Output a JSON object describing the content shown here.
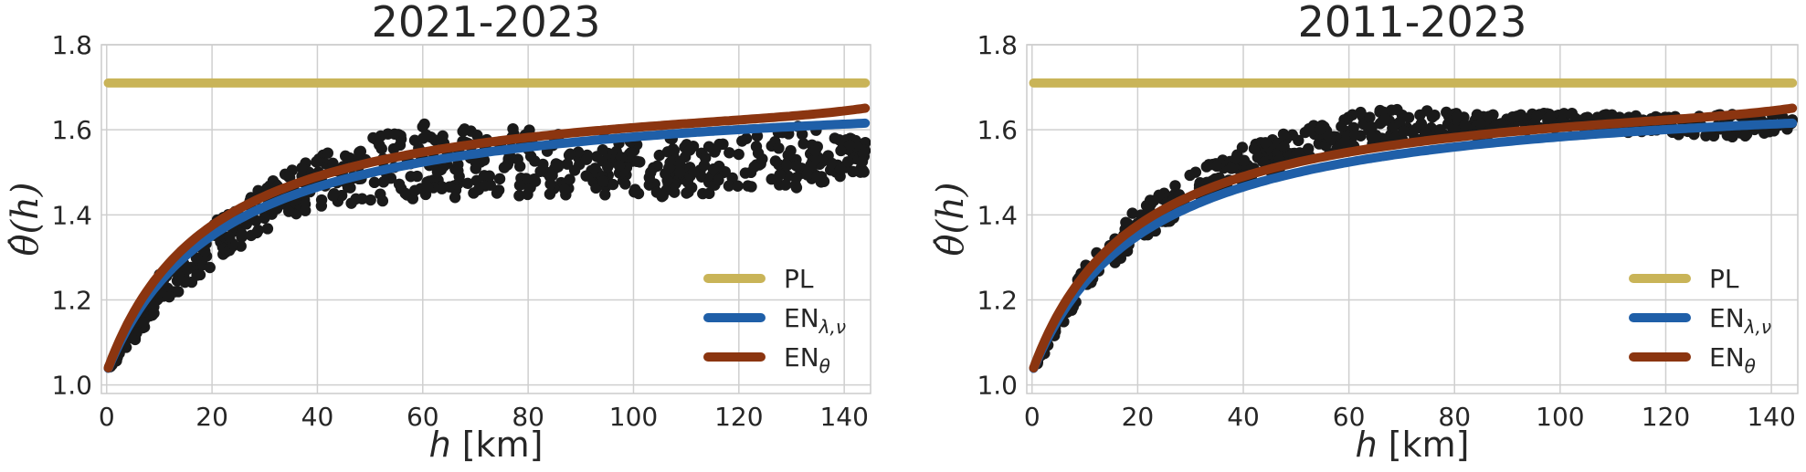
{
  "chart_data": [
    {
      "type": "scatter",
      "title": "2021-2023",
      "xlabel_prefix": "h",
      "xlabel_suffix": " [km]",
      "ylabel": "θ̂(h)",
      "xlim": [
        -1,
        145
      ],
      "ylim": [
        0.98,
        1.8
      ],
      "xticks": [
        0,
        20,
        40,
        60,
        80,
        100,
        120,
        140
      ],
      "yticks": [
        1.0,
        1.2,
        1.4,
        1.6,
        1.8
      ],
      "ytick_labels": [
        "1.0",
        "1.2",
        "1.4",
        "1.6",
        "1.8"
      ],
      "grid": true,
      "legend_position": "bottom-right",
      "scatter": {
        "color": "#1a1a1a",
        "x_range": [
          0.5,
          144
        ],
        "count": 640,
        "band": [
          [
            0,
            1.03,
            1.03
          ],
          [
            5,
            1.1,
            1.15
          ],
          [
            10,
            1.18,
            1.26
          ],
          [
            20,
            1.28,
            1.38
          ],
          [
            30,
            1.36,
            1.47
          ],
          [
            40,
            1.42,
            1.54
          ],
          [
            50,
            1.43,
            1.58
          ],
          [
            60,
            1.44,
            1.62
          ],
          [
            70,
            1.44,
            1.62
          ],
          [
            80,
            1.44,
            1.6
          ],
          [
            100,
            1.44,
            1.58
          ],
          [
            120,
            1.45,
            1.58
          ],
          [
            130,
            1.46,
            1.62
          ],
          [
            144,
            1.5,
            1.57
          ]
        ]
      },
      "series": [
        {
          "name": "PL",
          "name_sub": "",
          "color": "#c9b458",
          "kind": "constant",
          "value": 1.71
        },
        {
          "name": "EN",
          "name_sub": "λ,ν",
          "color": "#1f5fa8",
          "kind": "saturating",
          "start": 1.03,
          "end": 1.705,
          "scale": 22
        },
        {
          "name": "EN",
          "name_sub": "θ",
          "color": "#8b3510",
          "kind": "saturating",
          "start": 1.03,
          "end": 1.72,
          "scale": 20,
          "uptick": 0.015
        }
      ]
    },
    {
      "type": "scatter",
      "title": "2011-2023",
      "xlabel_prefix": "h",
      "xlabel_suffix": " [km]",
      "ylabel": "θ̂(h)",
      "xlim": [
        -1,
        145
      ],
      "ylim": [
        0.98,
        1.8
      ],
      "xticks": [
        0,
        20,
        40,
        60,
        80,
        100,
        120,
        140
      ],
      "yticks": [
        1.0,
        1.2,
        1.4,
        1.6,
        1.8
      ],
      "ytick_labels": [
        "1.0",
        "1.2",
        "1.4",
        "1.6",
        "1.8"
      ],
      "grid": true,
      "legend_position": "bottom-right",
      "scatter": {
        "color": "#1a1a1a",
        "x_range": [
          0.5,
          144
        ],
        "count": 560,
        "band": [
          [
            0,
            1.03,
            1.03
          ],
          [
            5,
            1.12,
            1.16
          ],
          [
            10,
            1.22,
            1.28
          ],
          [
            20,
            1.33,
            1.42
          ],
          [
            30,
            1.42,
            1.5
          ],
          [
            40,
            1.48,
            1.56
          ],
          [
            50,
            1.52,
            1.6
          ],
          [
            60,
            1.55,
            1.64
          ],
          [
            70,
            1.57,
            1.65
          ],
          [
            80,
            1.58,
            1.64
          ],
          [
            100,
            1.6,
            1.64
          ],
          [
            120,
            1.59,
            1.63
          ],
          [
            135,
            1.58,
            1.64
          ],
          [
            144,
            1.6,
            1.63
          ]
        ]
      },
      "series": [
        {
          "name": "PL",
          "name_sub": "",
          "color": "#c9b458",
          "kind": "constant",
          "value": 1.71
        },
        {
          "name": "EN",
          "name_sub": "λ,ν",
          "color": "#1f5fa8",
          "kind": "saturating",
          "start": 1.03,
          "end": 1.705,
          "scale": 22
        },
        {
          "name": "EN",
          "name_sub": "θ",
          "color": "#8b3510",
          "kind": "saturating",
          "start": 1.03,
          "end": 1.72,
          "scale": 20,
          "uptick": 0.015
        }
      ]
    }
  ]
}
